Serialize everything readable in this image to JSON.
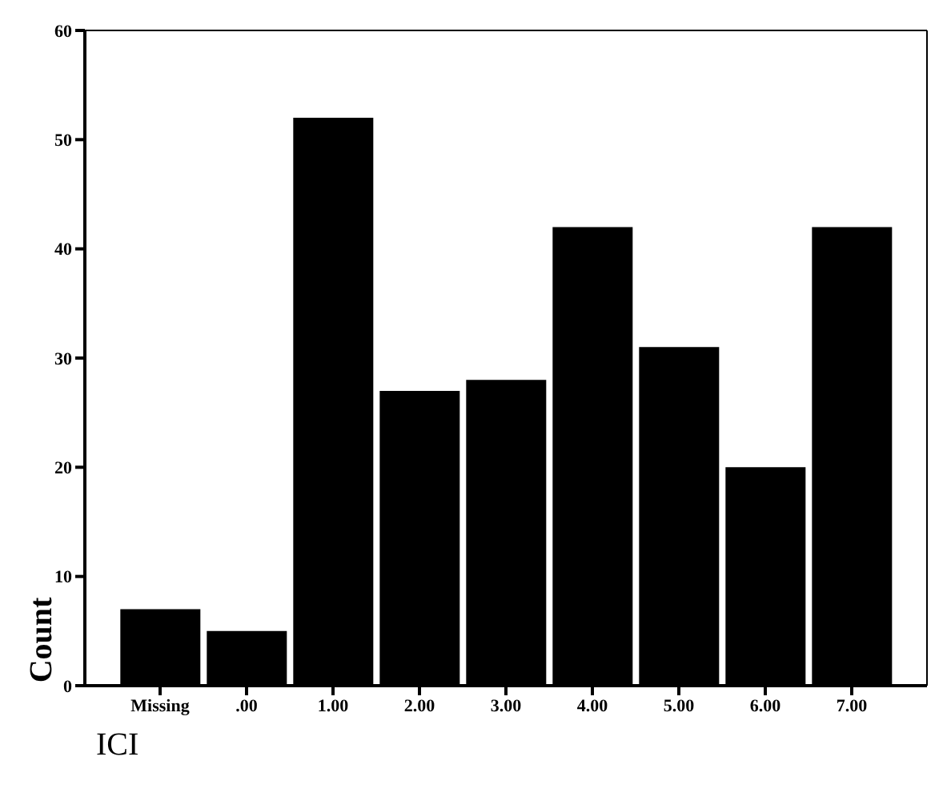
{
  "chart_data": {
    "type": "bar",
    "xlabel": "ICI",
    "ylabel": "Count",
    "categories": [
      "Missing",
      ".00",
      "1.00",
      "2.00",
      "3.00",
      "4.00",
      "5.00",
      "6.00",
      "7.00"
    ],
    "values": [
      7,
      5,
      52,
      27,
      28,
      42,
      31,
      20,
      42
    ],
    "color": "#000000",
    "ylim": [
      0,
      60
    ],
    "yticks": [
      0,
      10,
      20,
      30,
      40,
      50,
      60
    ],
    "grid": false
  }
}
